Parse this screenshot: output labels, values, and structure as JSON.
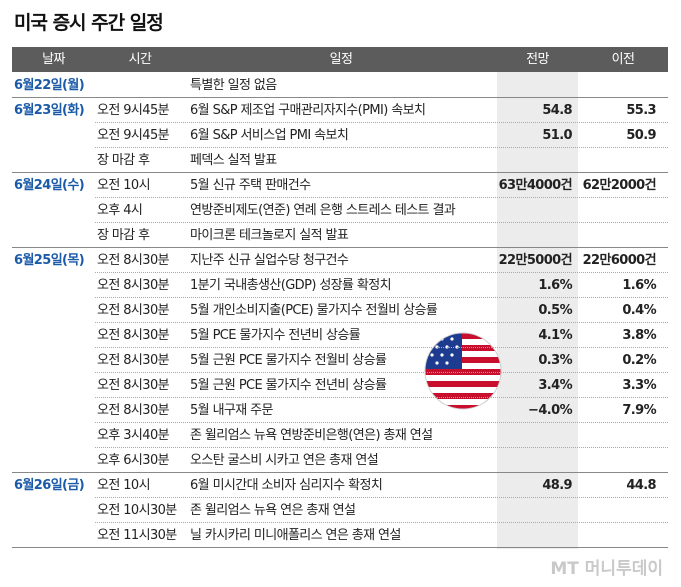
{
  "title": "미국 증시 주간 일정",
  "table": {
    "header": [
      "날짜",
      "시간",
      "일정",
      "전망",
      "이전"
    ],
    "groups": [
      {
        "date": "6월22일(월)",
        "rows": [
          {
            "event": "특별한 일정 없음"
          }
        ]
      },
      {
        "date": "6월23일(화)",
        "rows": [
          {
            "time": "오전 9시45분",
            "event": "6월 S&P 제조업 구매관리자지수(PMI) 속보치",
            "forecast": "54.8",
            "previous": "55.3"
          },
          {
            "time": "오전 9시45분",
            "event": "6월 S&P 서비스업 PMI 속보치",
            "forecast": "51.0",
            "previous": "50.9"
          },
          {
            "time": "장 마감 후",
            "event": "페덱스 실적 발표"
          }
        ]
      },
      {
        "date": "6월24일(수)",
        "rows": [
          {
            "time": "오전 10시",
            "event": "5월 신규 주택 판매건수",
            "forecast": "63만4000건",
            "previous": "62만2000건"
          },
          {
            "time": "오후 4시",
            "event": "연방준비제도(연준) 연례 은행 스트레스 테스트 결과"
          },
          {
            "time": "장 마감 후",
            "event": "마이크론 테크놀로지 실적 발표"
          }
        ]
      },
      {
        "date": "6월25일(목)",
        "rows": [
          {
            "time": "오전 8시30분",
            "event": "지난주 신규 실업수당 청구건수",
            "forecast": "22만5000건",
            "previous": "22만6000건"
          },
          {
            "time": "오전 8시30분",
            "event": "1분기 국내총생산(GDP) 성장률 확정치",
            "forecast": "1.6%",
            "previous": "1.6%"
          },
          {
            "time": "오전 8시30분",
            "event": "5월 개인소비지출(PCE) 물가지수 전월비 상승률",
            "forecast": "0.5%",
            "previous": "0.4%"
          },
          {
            "time": "오전 8시30분",
            "event": "5월 PCE 물가지수 전년비 상승률",
            "forecast": "4.1%",
            "previous": "3.8%"
          },
          {
            "time": "오전 8시30분",
            "event": "5월 근원 PCE 물가지수 전월비 상승률",
            "forecast": "0.3%",
            "previous": "0.2%"
          },
          {
            "time": "오전 8시30분",
            "event": "5월 근원 PCE 물가지수 전년비 상승률",
            "forecast": "3.4%",
            "previous": "3.3%"
          },
          {
            "time": "오전 8시30분",
            "event": "5월 내구재 주문",
            "forecast": "−4.0%",
            "previous": "7.9%"
          },
          {
            "time": "오후 3시40분",
            "event": "존 윌리엄스 뉴욕 연방준비은행(연은) 총재 연설"
          },
          {
            "time": "오후 6시30분",
            "event": "오스탄 굴스비 시카고 연은 총재 연설"
          }
        ]
      },
      {
        "date": "6월26일(금)",
        "rows": [
          {
            "time": "오전 10시",
            "event": "6월 미시간대 소비자 심리지수 확정치",
            "forecast": "48.9",
            "previous": "44.8"
          },
          {
            "time": "오전 10시30분",
            "event": "존 윌리엄스 뉴욕 연은 총재 연설"
          },
          {
            "time": "오전 11시30분",
            "event": "닐 카시카리 미니애폴리스 연은 총재 연설"
          }
        ]
      }
    ]
  },
  "watermark": "MT 머니투데이"
}
